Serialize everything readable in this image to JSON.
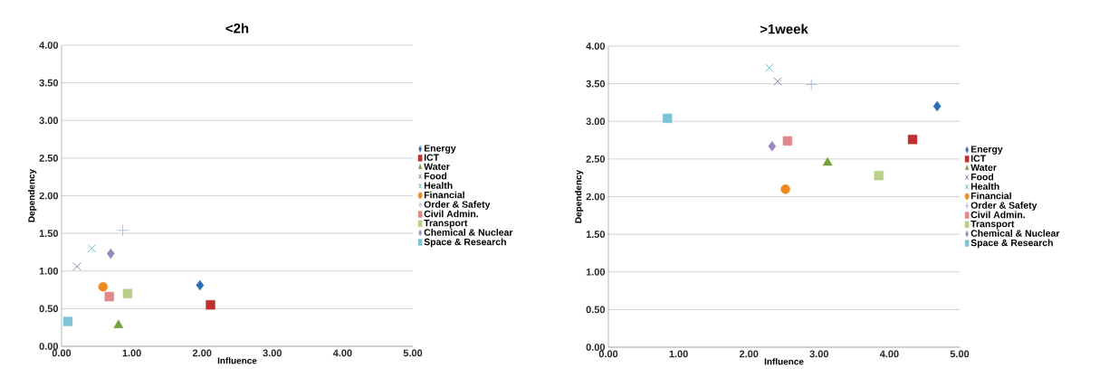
{
  "chart_data": [
    {
      "type": "scatter",
      "title": "<2h",
      "xlabel": "Influence",
      "ylabel": "Dependency",
      "xlim": [
        0,
        5
      ],
      "ylim": [
        0,
        4
      ],
      "xticks": [
        {
          "value": 0,
          "label": "0.00"
        },
        {
          "value": 1,
          "label": "1.00"
        },
        {
          "value": 2,
          "label": "2.00"
        },
        {
          "value": 3,
          "label": "3.00"
        },
        {
          "value": 4,
          "label": "4.00"
        },
        {
          "value": 5,
          "label": "5.00"
        }
      ],
      "yticks": [
        {
          "value": 0,
          "label": "0.00"
        },
        {
          "value": 0.5,
          "label": "0.50"
        },
        {
          "value": 1,
          "label": "1.00"
        },
        {
          "value": 1.5,
          "label": "1.50"
        },
        {
          "value": 2,
          "label": "2.00"
        },
        {
          "value": 2.5,
          "label": "2.50"
        },
        {
          "value": 3,
          "label": "3.00"
        },
        {
          "value": 3.5,
          "label": "3.50"
        },
        {
          "value": 4,
          "label": "4.00"
        }
      ],
      "grid": "y",
      "legend": "right",
      "series": [
        {
          "name": "Energy",
          "color": "#2e6db4",
          "marker": "diamond",
          "x": [
            1.97
          ],
          "values": [
            0.81
          ]
        },
        {
          "name": "ICT",
          "color": "#c0302f",
          "marker": "square",
          "x": [
            2.12
          ],
          "values": [
            0.55
          ]
        },
        {
          "name": "Water",
          "color": "#76a03a",
          "marker": "triangle",
          "x": [
            0.81
          ],
          "values": [
            0.28
          ]
        },
        {
          "name": "Food",
          "color": "#7e62a0",
          "marker": "cross",
          "x": [
            0.22
          ],
          "values": [
            1.06
          ]
        },
        {
          "name": "Health",
          "color": "#3fb2c4",
          "marker": "cross",
          "x": [
            0.43
          ],
          "values": [
            1.3
          ]
        },
        {
          "name": "Financial",
          "color": "#ee8a1e",
          "marker": "circle",
          "x": [
            0.59
          ],
          "values": [
            0.79
          ]
        },
        {
          "name": "Order & Safety",
          "color": "#9bb4dc",
          "marker": "plus",
          "x": [
            0.87
          ],
          "values": [
            1.54
          ]
        },
        {
          "name": "Civil Admin.",
          "color": "#e0898a",
          "marker": "square",
          "x": [
            0.68
          ],
          "values": [
            0.66
          ]
        },
        {
          "name": "Transport",
          "color": "#b8d08c",
          "marker": "square",
          "x": [
            0.94
          ],
          "values": [
            0.7
          ]
        },
        {
          "name": "Chemical & Nuclear",
          "color": "#9a88bf",
          "marker": "diamond",
          "x": [
            0.7
          ],
          "values": [
            1.23
          ]
        },
        {
          "name": "Space & Research",
          "color": "#7fc3d8",
          "marker": "square",
          "x": [
            0.09
          ],
          "values": [
            0.33
          ]
        }
      ]
    },
    {
      "type": "scatter",
      "title": ">1week",
      "xlabel": "Influence",
      "ylabel": "Dependency",
      "xlim": [
        0,
        5
      ],
      "ylim": [
        0,
        4
      ],
      "xticks": [
        {
          "value": 0,
          "label": "0.00"
        },
        {
          "value": 1,
          "label": "1.00"
        },
        {
          "value": 2,
          "label": "2.00"
        },
        {
          "value": 3,
          "label": "3.00"
        },
        {
          "value": 4,
          "label": "4.00"
        },
        {
          "value": 5,
          "label": "5.00"
        }
      ],
      "yticks": [
        {
          "value": 0,
          "label": "0.00"
        },
        {
          "value": 0.5,
          "label": "0.50"
        },
        {
          "value": 1,
          "label": "1.00"
        },
        {
          "value": 1.5,
          "label": "1.50"
        },
        {
          "value": 2,
          "label": "2.00"
        },
        {
          "value": 2.5,
          "label": "2.50"
        },
        {
          "value": 3,
          "label": "3.00"
        },
        {
          "value": 3.5,
          "label": "3.50"
        },
        {
          "value": 4,
          "label": "4.00"
        }
      ],
      "grid": "y",
      "legend": "right",
      "series": [
        {
          "name": "Energy",
          "color": "#2e6db4",
          "marker": "diamond",
          "x": [
            4.68
          ],
          "values": [
            3.2
          ]
        },
        {
          "name": "ICT",
          "color": "#c0302f",
          "marker": "square",
          "x": [
            4.33
          ],
          "values": [
            2.76
          ]
        },
        {
          "name": "Water",
          "color": "#76a03a",
          "marker": "triangle",
          "x": [
            3.12
          ],
          "values": [
            2.45
          ]
        },
        {
          "name": "Food",
          "color": "#7e62a0",
          "marker": "cross",
          "x": [
            2.41
          ],
          "values": [
            3.53
          ]
        },
        {
          "name": "Health",
          "color": "#3fb2c4",
          "marker": "cross",
          "x": [
            2.29
          ],
          "values": [
            3.71
          ]
        },
        {
          "name": "Financial",
          "color": "#ee8a1e",
          "marker": "circle",
          "x": [
            2.52
          ],
          "values": [
            2.1
          ]
        },
        {
          "name": "Order & Safety",
          "color": "#9bb4dc",
          "marker": "plus",
          "x": [
            2.89
          ],
          "values": [
            3.49
          ]
        },
        {
          "name": "Civil Admin.",
          "color": "#e0898a",
          "marker": "square",
          "x": [
            2.55
          ],
          "values": [
            2.74
          ]
        },
        {
          "name": "Transport",
          "color": "#b8d08c",
          "marker": "square",
          "x": [
            3.85
          ],
          "values": [
            2.28
          ]
        },
        {
          "name": "Chemical & Nuclear",
          "color": "#9a88bf",
          "marker": "diamond",
          "x": [
            2.33
          ],
          "values": [
            2.67
          ]
        },
        {
          "name": "Space & Research",
          "color": "#7fc3d8",
          "marker": "square",
          "x": [
            0.84
          ],
          "values": [
            3.04
          ]
        }
      ]
    }
  ]
}
